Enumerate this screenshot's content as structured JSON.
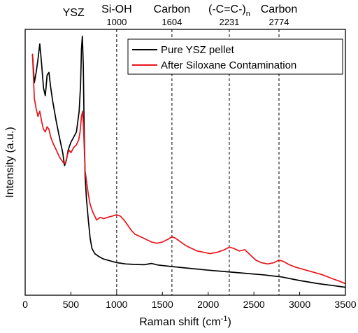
{
  "chart_data": {
    "type": "line",
    "title": "",
    "xlabel": "Raman shift (cm",
    "xlabel_superscript": "-1",
    "xlabel_suffix": ")",
    "ylabel": "Intensity (a.u.)",
    "xlim": [
      0,
      3500
    ],
    "ylim": [
      0,
      100
    ],
    "y_ticks_visible": false,
    "grid": false,
    "legend_position": "top-right",
    "x_ticks": [
      {
        "value": 0,
        "label": "0"
      },
      {
        "value": 500,
        "label": "500"
      },
      {
        "value": 1000,
        "label": "1000"
      },
      {
        "value": 1500,
        "label": "1500"
      },
      {
        "value": 2000,
        "label": "2000"
      },
      {
        "value": 2500,
        "label": "2500"
      },
      {
        "value": 3000,
        "label": "3000"
      },
      {
        "value": 3500,
        "label": "3500"
      }
    ],
    "reference_lines": [
      {
        "x": 1000,
        "label": "Si-OH",
        "sub_label": "1000"
      },
      {
        "x": 1604,
        "label": "Carbon",
        "sub_label": "1604"
      },
      {
        "x": 2231,
        "label": "(-C=C-)",
        "label_subscript": "n",
        "sub_label": "2231"
      },
      {
        "x": 2774,
        "label": "Carbon",
        "sub_label": "2774"
      }
    ],
    "peak_annotations": [
      {
        "x": 620,
        "label": "YSZ"
      }
    ],
    "series": [
      {
        "name": "Pure YSZ pellet",
        "color": "#000000",
        "points": [
          [
            80,
            92
          ],
          [
            100,
            81
          ],
          [
            120,
            85
          ],
          [
            140,
            90
          ],
          [
            160,
            96
          ],
          [
            180,
            88
          ],
          [
            200,
            79
          ],
          [
            220,
            76
          ],
          [
            240,
            84
          ],
          [
            260,
            85
          ],
          [
            280,
            79
          ],
          [
            300,
            74
          ],
          [
            340,
            66
          ],
          [
            380,
            59
          ],
          [
            410,
            54
          ],
          [
            430,
            49
          ],
          [
            450,
            51
          ],
          [
            470,
            55
          ],
          [
            500,
            58
          ],
          [
            530,
            60
          ],
          [
            560,
            62
          ],
          [
            590,
            70
          ],
          [
            605,
            80
          ],
          [
            615,
            94
          ],
          [
            625,
            99
          ],
          [
            635,
            88
          ],
          [
            645,
            63
          ],
          [
            655,
            45
          ],
          [
            670,
            36
          ],
          [
            690,
            28
          ],
          [
            710,
            21
          ],
          [
            730,
            17
          ],
          [
            760,
            15
          ],
          [
            800,
            14
          ],
          [
            850,
            13
          ],
          [
            900,
            12.5
          ],
          [
            1000,
            11.5
          ],
          [
            1100,
            11
          ],
          [
            1200,
            10.8
          ],
          [
            1300,
            10.7
          ],
          [
            1380,
            11.2
          ],
          [
            1450,
            10.6
          ],
          [
            1600,
            10
          ],
          [
            1800,
            9.3
          ],
          [
            2000,
            8.6
          ],
          [
            2200,
            8
          ],
          [
            2400,
            7.4
          ],
          [
            2600,
            6.8
          ],
          [
            2800,
            6
          ],
          [
            3000,
            4.6
          ],
          [
            3200,
            3.4
          ],
          [
            3400,
            2.5
          ],
          [
            3500,
            2
          ]
        ]
      },
      {
        "name": "After Siloxane Contamination",
        "color": "#e8141b",
        "points": [
          [
            80,
            92
          ],
          [
            100,
            75
          ],
          [
            120,
            71
          ],
          [
            140,
            68
          ],
          [
            160,
            70
          ],
          [
            180,
            66
          ],
          [
            200,
            63
          ],
          [
            220,
            62
          ],
          [
            240,
            64
          ],
          [
            260,
            63
          ],
          [
            280,
            60
          ],
          [
            300,
            58
          ],
          [
            340,
            55
          ],
          [
            380,
            52
          ],
          [
            420,
            50
          ],
          [
            440,
            50
          ],
          [
            460,
            53
          ],
          [
            480,
            55
          ],
          [
            500,
            54
          ],
          [
            530,
            56
          ],
          [
            560,
            57
          ],
          [
            585,
            59
          ],
          [
            600,
            62
          ],
          [
            615,
            68
          ],
          [
            628,
            70
          ],
          [
            640,
            62
          ],
          [
            655,
            47
          ],
          [
            670,
            43
          ],
          [
            690,
            38
          ],
          [
            710,
            34
          ],
          [
            740,
            31
          ],
          [
            780,
            28
          ],
          [
            820,
            29
          ],
          [
            860,
            28.5
          ],
          [
            900,
            29
          ],
          [
            950,
            29.5
          ],
          [
            1000,
            30
          ],
          [
            1040,
            29.5
          ],
          [
            1080,
            28
          ],
          [
            1120,
            26
          ],
          [
            1160,
            24
          ],
          [
            1200,
            22.5
          ],
          [
            1260,
            21.5
          ],
          [
            1320,
            20.5
          ],
          [
            1380,
            19.5
          ],
          [
            1440,
            19
          ],
          [
            1500,
            19.5
          ],
          [
            1560,
            20.5
          ],
          [
            1604,
            21.5
          ],
          [
            1640,
            21
          ],
          [
            1700,
            19.5
          ],
          [
            1760,
            18
          ],
          [
            1820,
            17
          ],
          [
            1880,
            16
          ],
          [
            1950,
            15.5
          ],
          [
            2020,
            15
          ],
          [
            2100,
            15.5
          ],
          [
            2180,
            16.5
          ],
          [
            2231,
            17.5
          ],
          [
            2280,
            17
          ],
          [
            2340,
            16
          ],
          [
            2400,
            16.5
          ],
          [
            2460,
            14.5
          ],
          [
            2520,
            12.5
          ],
          [
            2580,
            11.5
          ],
          [
            2650,
            11
          ],
          [
            2720,
            11.5
          ],
          [
            2774,
            12.5
          ],
          [
            2820,
            12
          ],
          [
            2880,
            10.8
          ],
          [
            2950,
            9.8
          ],
          [
            3050,
            8.8
          ],
          [
            3150,
            7.8
          ],
          [
            3250,
            6.8
          ],
          [
            3350,
            5.4
          ],
          [
            3430,
            4.4
          ],
          [
            3500,
            3.4
          ]
        ]
      }
    ]
  }
}
